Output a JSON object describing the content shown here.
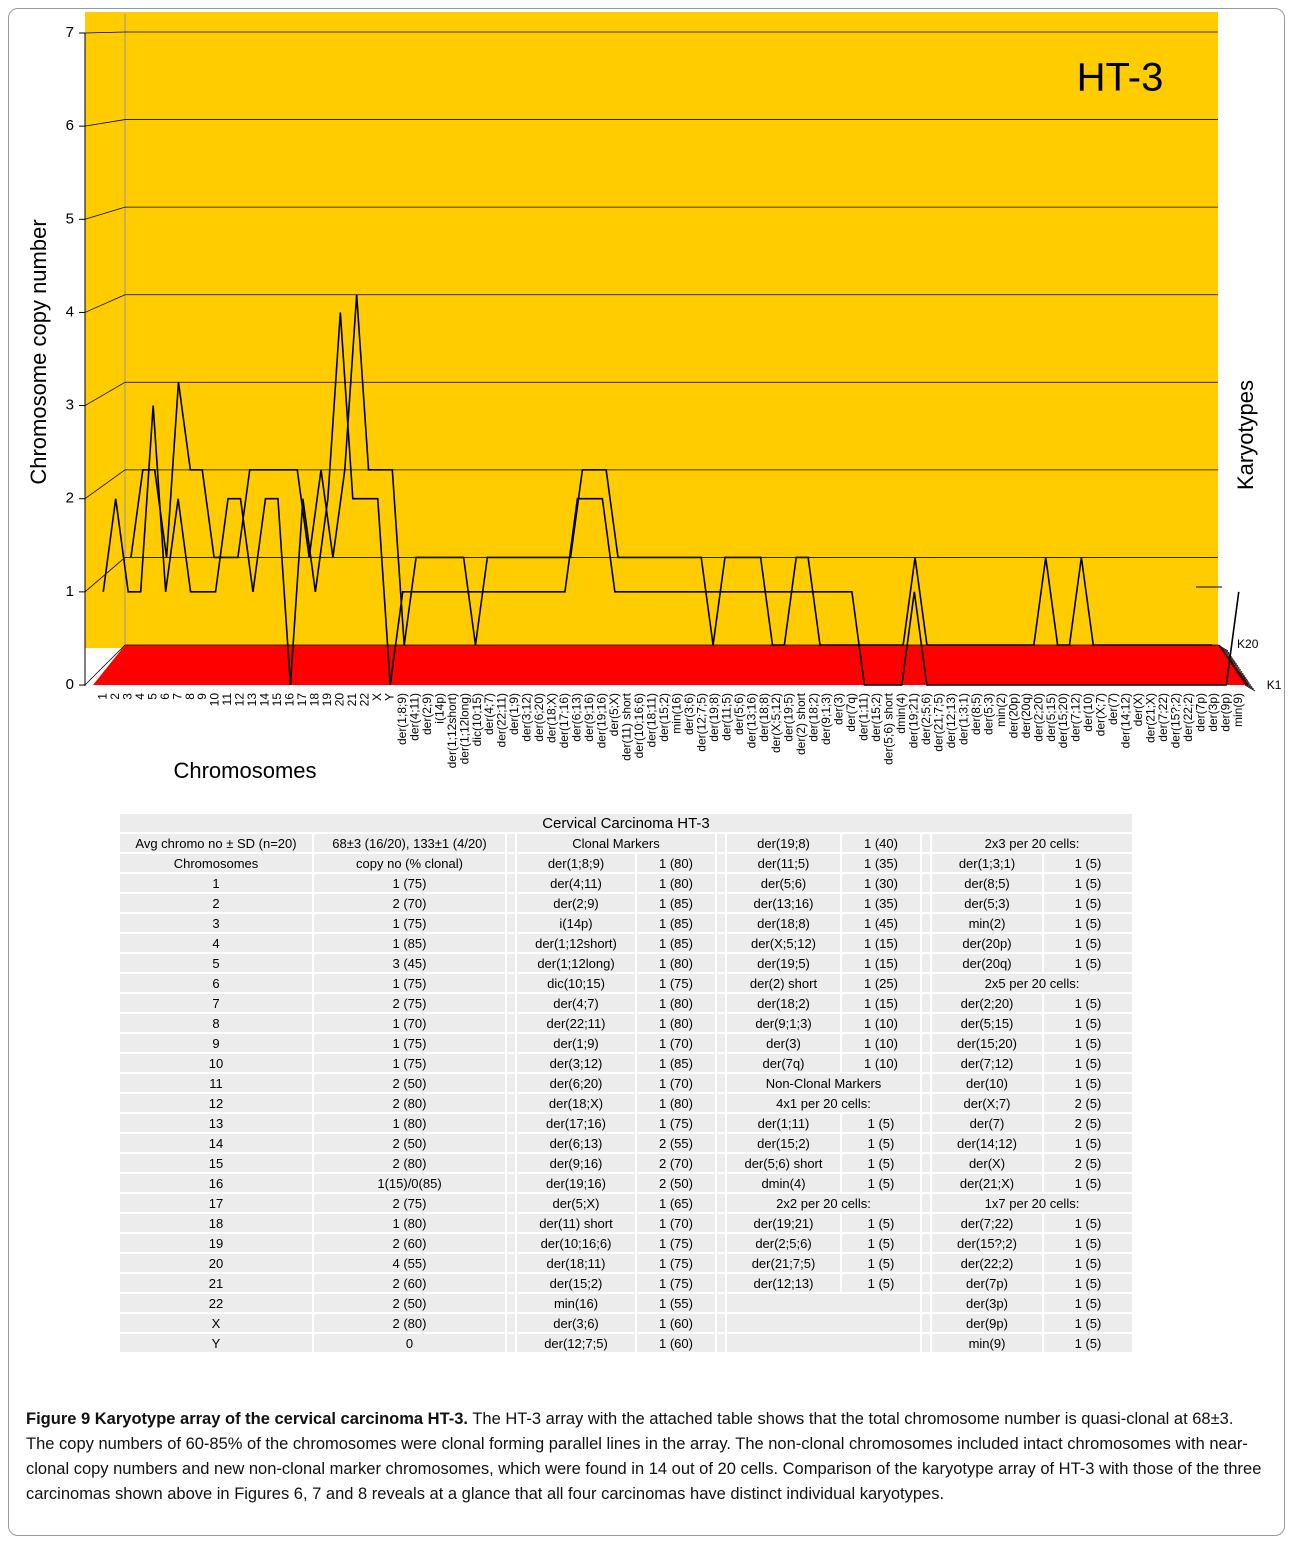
{
  "chart_data": {
    "type": "line",
    "title": "HT-3",
    "x_label": "Chromosomes",
    "y_label": "Chromosome copy number",
    "z_label": "Karyotypes",
    "categories": [
      "1",
      "2",
      "3",
      "4",
      "5",
      "6",
      "7",
      "8",
      "9",
      "10",
      "11",
      "12",
      "13",
      "14",
      "15",
      "16",
      "17",
      "18",
      "19",
      "20",
      "21",
      "22",
      "X",
      "Y",
      "der(1;8;9)",
      "der(4;11)",
      "der(2;9)",
      "i(14p)",
      "der(1;12short)",
      "der(1;12long)",
      "dic(10;15)",
      "der(4;7)",
      "der(22;11)",
      "der(1;9)",
      "der(3;12)",
      "der(6;20)",
      "der(18;X)",
      "der(17;16)",
      "der(6;13)",
      "der(9;16)",
      "der(19;16)",
      "der(5;X)",
      "der(11) short",
      "der(10;16;6)",
      "der(18;11)",
      "der(15;2)",
      "min(16)",
      "der(3;6)",
      "der(12;7;5)",
      "der(19;8)",
      "der(11;5)",
      "der(5;6)",
      "der(13;16)",
      "der(18;8)",
      "der(X;5;12)",
      "der(19;5)",
      "der(2) short",
      "der(18;2)",
      "der(9;1;3)",
      "der(3)",
      "der(7q)",
      "der(1;11)",
      "der(15;2)",
      "der(5;6) short",
      "dmin(4)",
      "der(19;21)",
      "der(2;5;6)",
      "der(21;7;5)",
      "der(12;13)",
      "der(1;3;1)",
      "der(8;5)",
      "der(5;3)",
      "min(2)",
      "der(20p)",
      "der(20q)",
      "der(2;20)",
      "der(5;15)",
      "der(15;20)",
      "der(7;12)",
      "der(10)",
      "der(X;7)",
      "der(7)",
      "der(14;12)",
      "der(X)",
      "der(21;X)",
      "der(7;22)",
      "der(15?;2)",
      "der(22;2)",
      "der(7p)",
      "der(3p)",
      "der(9p)",
      "min(9)"
    ],
    "series": [
      {
        "name": "K1",
        "color": "#000000",
        "values": [
          1,
          2,
          1,
          1,
          3,
          1,
          2,
          1,
          1,
          1,
          2,
          2,
          1,
          2,
          2,
          0,
          2,
          1,
          2,
          4,
          2,
          2,
          2,
          0,
          1,
          1,
          1,
          1,
          1,
          1,
          1,
          1,
          1,
          1,
          1,
          1,
          1,
          1,
          2,
          2,
          2,
          1,
          1,
          1,
          1,
          1,
          1,
          1,
          1,
          1,
          1,
          1,
          1,
          1,
          1,
          1,
          1,
          1,
          1,
          1,
          1,
          0,
          0,
          0,
          0,
          1,
          0,
          0,
          0,
          0,
          0,
          0,
          0,
          0,
          0,
          0,
          0,
          0,
          0,
          0,
          0,
          0,
          0,
          0,
          0,
          0,
          0,
          0,
          0,
          0,
          0,
          1
        ]
      },
      {
        "name": "K20",
        "color": "#000000",
        "values": [
          1,
          2,
          2,
          1,
          3,
          2,
          2,
          1,
          1,
          1,
          2,
          2,
          2,
          2,
          2,
          1,
          2,
          1,
          2,
          4,
          2,
          2,
          2,
          0,
          1,
          1,
          1,
          1,
          1,
          0,
          1,
          1,
          1,
          1,
          1,
          1,
          1,
          1,
          2,
          2,
          2,
          1,
          1,
          1,
          1,
          1,
          1,
          1,
          1,
          0,
          1,
          1,
          1,
          1,
          0,
          0,
          1,
          1,
          0,
          0,
          0,
          0,
          0,
          0,
          0,
          0,
          1,
          0,
          0,
          0,
          0,
          0,
          0,
          0,
          0,
          0,
          0,
          1,
          0,
          0,
          1,
          0,
          0,
          0,
          0,
          0,
          0,
          0,
          0,
          0,
          0,
          0
        ]
      }
    ],
    "ylim": [
      0,
      7
    ],
    "yticks": [
      0,
      1,
      2,
      3,
      4,
      5,
      6,
      7
    ],
    "grid": true,
    "wall_color": "#ffcc00",
    "floor_color": "#ff0000"
  },
  "table": {
    "title": "Cervical Carcinoma HT-3",
    "rows": [
      [
        [
          "Avg chromo no ± SD (n=20)",
          "68±3 (16/20), 133±1 (4/20)"
        ],
        [
          "Clonal Markers"
        ],
        [
          "der(19;8)",
          "1 (40)"
        ],
        [
          "2x3 per 20 cells:"
        ]
      ],
      [
        [
          "Chromosomes",
          "copy no (% clonal)"
        ],
        [
          "der(1;8;9)",
          "1 (80)"
        ],
        [
          "der(11;5)",
          "1 (35)"
        ],
        [
          "der(1;3;1)",
          "1 (5)"
        ]
      ],
      [
        [
          "1",
          "1 (75)"
        ],
        [
          "der(4;11)",
          "1 (80)"
        ],
        [
          "der(5;6)",
          "1 (30)"
        ],
        [
          "der(8;5)",
          "1 (5)"
        ]
      ],
      [
        [
          "2",
          "2 (70)"
        ],
        [
          "der(2;9)",
          "1 (85)"
        ],
        [
          "der(13;16)",
          "1 (35)"
        ],
        [
          "der(5;3)",
          "1 (5)"
        ]
      ],
      [
        [
          "3",
          "1 (75)"
        ],
        [
          "i(14p)",
          "1 (85)"
        ],
        [
          "der(18;8)",
          "1 (45)"
        ],
        [
          "min(2)",
          "1 (5)"
        ]
      ],
      [
        [
          "4",
          "1 (85)"
        ],
        [
          "der(1;12short)",
          "1 (85)"
        ],
        [
          "der(X;5;12)",
          "1 (15)"
        ],
        [
          "der(20p)",
          "1 (5)"
        ]
      ],
      [
        [
          "5",
          "3 (45)"
        ],
        [
          "der(1;12long)",
          "1 (80)"
        ],
        [
          "der(19;5)",
          "1 (15)"
        ],
        [
          "der(20q)",
          "1 (5)"
        ]
      ],
      [
        [
          "6",
          "1 (75)"
        ],
        [
          "dic(10;15)",
          "1 (75)"
        ],
        [
          "der(2) short",
          "1 (25)"
        ],
        [
          "2x5 per 20 cells:"
        ]
      ],
      [
        [
          "7",
          "2 (75)"
        ],
        [
          "der(4;7)",
          "1 (80)"
        ],
        [
          "der(18;2)",
          "1 (15)"
        ],
        [
          "der(2;20)",
          "1 (5)"
        ]
      ],
      [
        [
          "8",
          "1 (70)"
        ],
        [
          "der(22;11)",
          "1 (80)"
        ],
        [
          "der(9;1;3)",
          "1 (10)"
        ],
        [
          "der(5;15)",
          "1 (5)"
        ]
      ],
      [
        [
          "9",
          "1 (75)"
        ],
        [
          "der(1;9)",
          "1 (70)"
        ],
        [
          "der(3)",
          "1 (10)"
        ],
        [
          "der(15;20)",
          "1 (5)"
        ]
      ],
      [
        [
          "10",
          "1 (75)"
        ],
        [
          "der(3;12)",
          "1 (85)"
        ],
        [
          "der(7q)",
          "1 (10)"
        ],
        [
          "der(7;12)",
          "1 (5)"
        ]
      ],
      [
        [
          "11",
          "2 (50)"
        ],
        [
          "der(6;20)",
          "1 (70)"
        ],
        [
          "Non-Clonal Markers"
        ],
        [
          "der(10)",
          "1 (5)"
        ]
      ],
      [
        [
          "12",
          "2 (80)"
        ],
        [
          "der(18;X)",
          "1 (80)"
        ],
        [
          "4x1 per 20 cells:"
        ],
        [
          "der(X;7)",
          "2 (5)"
        ]
      ],
      [
        [
          "13",
          "1 (80)"
        ],
        [
          "der(17;16)",
          "1 (75)"
        ],
        [
          "der(1;11)",
          "1 (5)"
        ],
        [
          "der(7)",
          "2 (5)"
        ]
      ],
      [
        [
          "14",
          "2 (50)"
        ],
        [
          "der(6;13)",
          "2 (55)"
        ],
        [
          "der(15;2)",
          "1 (5)"
        ],
        [
          "der(14;12)",
          "1 (5)"
        ]
      ],
      [
        [
          "15",
          "2 (80)"
        ],
        [
          "der(9;16)",
          "2 (70)"
        ],
        [
          "der(5;6) short",
          "1 (5)"
        ],
        [
          "der(X)",
          "2 (5)"
        ]
      ],
      [
        [
          "16",
          "1(15)/0(85)"
        ],
        [
          "der(19;16)",
          "2 (50)"
        ],
        [
          "dmin(4)",
          "1 (5)"
        ],
        [
          "der(21;X)",
          "1 (5)"
        ]
      ],
      [
        [
          "17",
          "2 (75)"
        ],
        [
          "der(5;X)",
          "1 (65)"
        ],
        [
          "2x2 per 20 cells:"
        ],
        [
          "1x7 per 20 cells:"
        ]
      ],
      [
        [
          "18",
          "1 (80)"
        ],
        [
          "der(11) short",
          "1 (70)"
        ],
        [
          "der(19;21)",
          "1 (5)"
        ],
        [
          "der(7;22)",
          "1 (5)"
        ]
      ],
      [
        [
          "19",
          "2 (60)"
        ],
        [
          "der(10;16;6)",
          "1 (75)"
        ],
        [
          "der(2;5;6)",
          "1 (5)"
        ],
        [
          "der(15?;2)",
          "1 (5)"
        ]
      ],
      [
        [
          "20",
          "4 (55)"
        ],
        [
          "der(18;11)",
          "1 (75)"
        ],
        [
          "der(21;7;5)",
          "1 (5)"
        ],
        [
          "der(22;2)",
          "1 (5)"
        ]
      ],
      [
        [
          "21",
          "2 (60)"
        ],
        [
          "der(15;2)",
          "1 (75)"
        ],
        [
          "der(12;13)",
          "1 (5)"
        ],
        [
          "der(7p)",
          "1 (5)"
        ]
      ],
      [
        [
          "22",
          "2 (50)"
        ],
        [
          "min(16)",
          "1 (55)"
        ],
        [],
        [
          "der(3p)",
          "1 (5)"
        ]
      ],
      [
        [
          "X",
          "2 (80)"
        ],
        [
          "der(3;6)",
          "1 (60)"
        ],
        [],
        [
          "der(9p)",
          "1 (5)"
        ]
      ],
      [
        [
          "Y",
          "0"
        ],
        [
          "der(12;7;5)",
          "1 (60)"
        ],
        [],
        [
          "min(9)",
          "1 (5)"
        ]
      ]
    ]
  },
  "caption": {
    "label": "Figure 9 Karyotype array of the cervical carcinoma HT-3.",
    "text": "The HT-3 array with the attached table shows that the total chromosome number is quasi-clonal at 68±3. The copy numbers of 60-85% of the chromosomes were clonal forming parallel lines in the array. The non-clonal chromosomes included intact chromosomes with near-clonal copy numbers and new non-clonal marker chromosomes, which were found in 14 out of 20 cells. Comparison of the karyotype array of HT-3 with those of the three carcinomas shown above in Figures 6, 7 and 8 reveals at a glance that all four carcinomas have distinct individual karyotypes."
  }
}
